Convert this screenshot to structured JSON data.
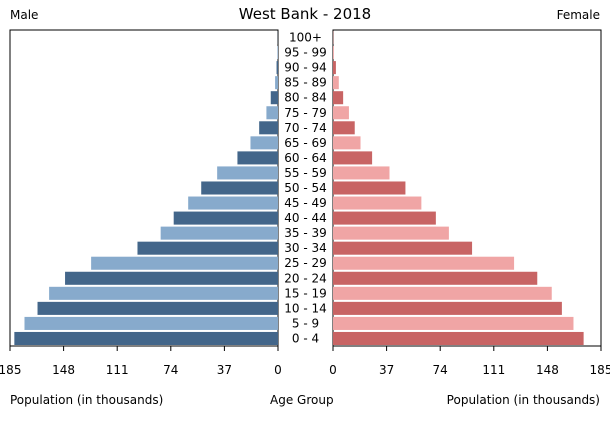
{
  "chart_data": {
    "type": "bar",
    "title": "West Bank - 2018",
    "left_label": "Male",
    "right_label": "Female",
    "x_axis_label_left": "Population (in thousands)",
    "x_axis_label_center": "Age Group",
    "x_axis_label_right": "Population (in thousands)",
    "xlim": [
      0,
      185
    ],
    "xticks": [
      "185",
      "148",
      "111",
      "74",
      "37",
      "0"
    ],
    "xticks_right": [
      "0",
      "37",
      "74",
      "111",
      "148",
      "185"
    ],
    "categories": [
      "0 - 4",
      "5 - 9",
      "10 - 14",
      "15 - 19",
      "20 - 24",
      "25 - 29",
      "30 - 34",
      "35 - 39",
      "40 - 44",
      "45 - 49",
      "50 - 54",
      "55 - 59",
      "60 - 64",
      "65 - 69",
      "70 - 74",
      "75 - 79",
      "80 - 84",
      "85 - 89",
      "90 - 94",
      "95 - 99",
      "100+"
    ],
    "series": [
      {
        "name": "Male",
        "side": "left",
        "values": [
          182,
          175,
          166,
          158,
          147,
          129,
          97,
          81,
          72,
          62,
          53,
          42,
          28,
          19,
          13,
          8,
          5,
          2,
          1,
          0.4,
          0.1
        ]
      },
      {
        "name": "Female",
        "side": "right",
        "values": [
          173,
          166,
          158,
          151,
          141,
          125,
          96,
          80,
          71,
          61,
          50,
          39,
          27,
          19,
          15,
          11,
          7,
          4,
          2,
          0.6,
          0.2
        ]
      }
    ],
    "colors": {
      "male_dark": "#43668A",
      "male_light": "#87AACC",
      "female_dark": "#C86464",
      "female_light": "#F0A5A5"
    },
    "grid": false
  }
}
